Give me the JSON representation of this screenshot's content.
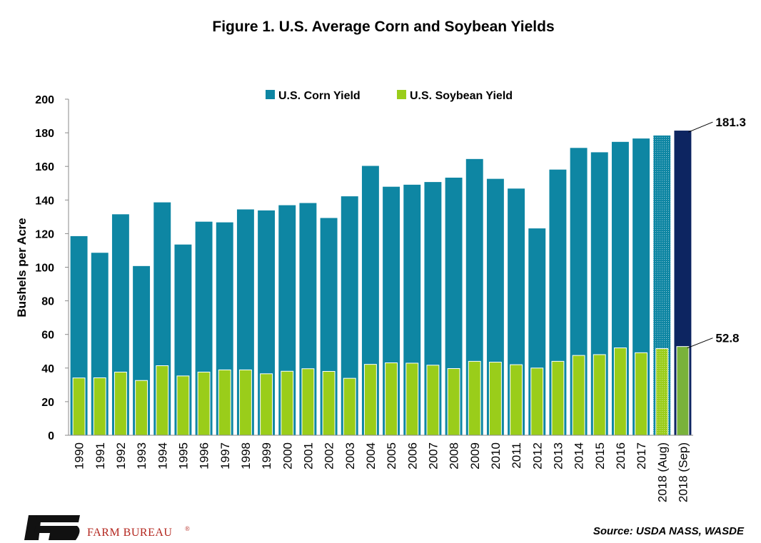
{
  "chart_data": {
    "type": "bar",
    "title": "Figure 1. U.S. Average Corn and Soybean Yields",
    "ylabel": "Bushels per Acre",
    "xlabel": "",
    "ylim": [
      0,
      200
    ],
    "yticks": [
      0,
      20,
      40,
      60,
      80,
      100,
      120,
      140,
      160,
      180,
      200
    ],
    "grid": false,
    "legend_position": "top",
    "categories": [
      "1990",
      "1991",
      "1992",
      "1993",
      "1994",
      "1995",
      "1996",
      "1997",
      "1998",
      "1999",
      "2000",
      "2001",
      "2002",
      "2003",
      "2004",
      "2005",
      "2006",
      "2007",
      "2008",
      "2009",
      "2010",
      "2011",
      "2012",
      "2013",
      "2014",
      "2015",
      "2016",
      "2017",
      "2018 (Aug)",
      "2018 (Sep)"
    ],
    "series": [
      {
        "name": "U.S. Corn Yield",
        "color": "#0e86a3",
        "values": [
          118.5,
          108.6,
          131.5,
          100.7,
          138.6,
          113.5,
          127.1,
          126.7,
          134.4,
          133.8,
          136.9,
          138.2,
          129.3,
          142.2,
          160.3,
          147.9,
          149.1,
          150.7,
          153.3,
          164.4,
          152.6,
          146.8,
          123.1,
          158.1,
          171.0,
          168.4,
          174.6,
          176.6,
          178.4,
          181.3
        ]
      },
      {
        "name": "U.S. Soybean Yield",
        "color": "#9acd1a",
        "values": [
          34.1,
          34.2,
          37.6,
          32.6,
          41.4,
          35.3,
          37.6,
          38.9,
          38.9,
          36.6,
          38.1,
          39.6,
          38.0,
          33.9,
          42.2,
          43.1,
          42.9,
          41.7,
          39.7,
          44.0,
          43.5,
          42.0,
          40.0,
          44.0,
          47.5,
          48.0,
          52.0,
          49.1,
          51.6,
          52.8
        ]
      }
    ],
    "highlight": {
      "category": "2018 (Sep)",
      "corn_color": "#0d2561",
      "soy_color": "#79b23a",
      "projection_category": "2018 (Aug)"
    },
    "annotations": [
      "181.3",
      "52.8"
    ]
  },
  "source": "Source: USDA NASS, WASDE",
  "logo": {
    "name": "FARM BUREAU",
    "mark": "®",
    "colors": {
      "mark": "#111111",
      "text": "#b3261e"
    }
  }
}
